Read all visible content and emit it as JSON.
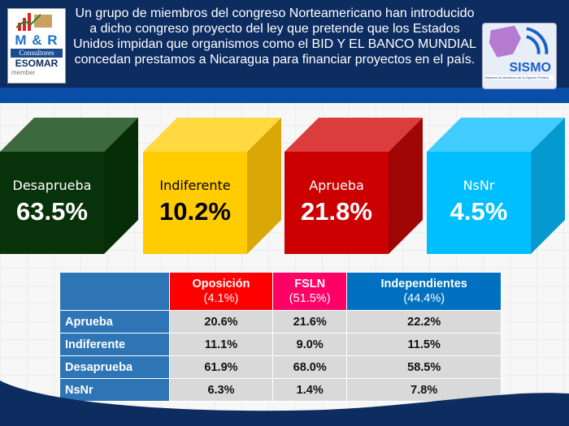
{
  "header": {
    "title": "Un grupo de miembros del congreso Norteamericano han introducido a dicho congreso proyecto del ley que pretende que los Estados Unidos impidan que organismos como el BID Y EL BANCO MUNDIAL concedan prestamos a Nicaragua para financiar proyectos en el país.",
    "logo_left": {
      "name": "M & R",
      "line2": "Consultores",
      "line3": "ESOMAR",
      "line4": "member"
    },
    "logo_right": {
      "name": "SISMO",
      "sub": "Sistema de Monitoreo de la Opinión Pública"
    }
  },
  "cubes": [
    {
      "label": "Desaprueba",
      "value": "63.5%",
      "front": "#08330a",
      "top": "#3c6a3e",
      "side": "#072d08",
      "text": "#ffffff"
    },
    {
      "label": "Indiferente",
      "value": "10.2%",
      "front": "#ffcc00",
      "top": "#ffd940",
      "side": "#d9a806",
      "text": "#000000"
    },
    {
      "label": "Aprueba",
      "value": "21.8%",
      "front": "#cc0000",
      "top": "#db3c3c",
      "side": "#a00606",
      "text": "#ffffff"
    },
    {
      "label": "NsNr",
      "value": "4.5%",
      "front": "#00bfff",
      "top": "#40ccff",
      "side": "#0599cf",
      "text": "#ffffff"
    }
  ],
  "table": {
    "columns": [
      {
        "name": "Oposición",
        "pct": "(4.1%)",
        "color": "#ff0000"
      },
      {
        "name": "FSLN",
        "pct": "(51.5%)",
        "color": "#ff0066"
      },
      {
        "name": "Independientes",
        "pct": "(44.4%)",
        "color": "#0070c0"
      }
    ],
    "rows": [
      {
        "label": "Aprueba",
        "values": [
          "20.6%",
          "21.6%",
          "22.2%"
        ]
      },
      {
        "label": "Indiferente",
        "values": [
          "11.1%",
          "9.0%",
          "11.5%"
        ]
      },
      {
        "label": "Desaprueba",
        "values": [
          "61.9%",
          "68.0%",
          "58.5%"
        ]
      },
      {
        "label": "NsNr",
        "values": [
          "6.3%",
          "1.4%",
          "7.8%"
        ]
      }
    ]
  }
}
